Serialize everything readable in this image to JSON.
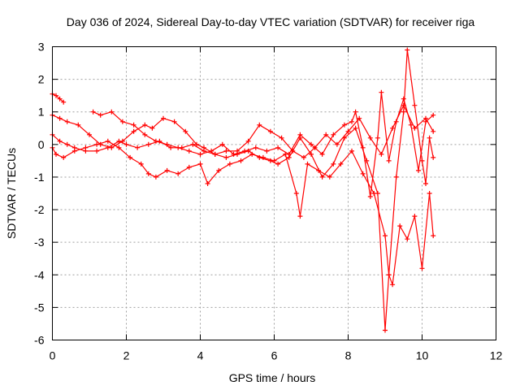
{
  "chart_data": {
    "type": "scatter",
    "title": "Day 036 of 2024, Sidereal Day-to-day VTEC variation (SDTVAR) for receiver riga",
    "xlabel": "GPS time / hours",
    "ylabel": "SDTVAR / TECUs",
    "xlim": [
      0,
      12
    ],
    "ylim": [
      -6,
      3
    ],
    "xticks": [
      0,
      2,
      4,
      6,
      8,
      10,
      12
    ],
    "yticks": [
      -6,
      -5,
      -4,
      -3,
      -2,
      -1,
      0,
      1,
      2,
      3
    ],
    "grid": true,
    "marker": "+",
    "color": "#ff0000",
    "series": [
      {
        "name": "track 1",
        "x": [
          0.0,
          0.2,
          0.4,
          0.7,
          1.0,
          1.3,
          1.6,
          1.9,
          2.2,
          2.5,
          2.7,
          3.0,
          3.3,
          3.6,
          3.9,
          4.1,
          4.4,
          4.7,
          5.0,
          5.3,
          5.6,
          5.9,
          6.2,
          6.5,
          6.8,
          7.1,
          7.4,
          7.7,
          8.0,
          8.3,
          8.6,
          8.9,
          9.2,
          9.5,
          9.8,
          10.1,
          10.3
        ],
        "y": [
          0.9,
          0.8,
          0.7,
          0.6,
          0.3,
          0.0,
          -0.1,
          0.1,
          0.4,
          0.6,
          0.5,
          0.8,
          0.7,
          0.4,
          0.0,
          -0.1,
          -0.3,
          -0.2,
          -0.2,
          0.1,
          0.6,
          0.4,
          0.2,
          -0.2,
          -0.4,
          -0.1,
          0.3,
          0.0,
          0.4,
          0.8,
          0.2,
          -0.3,
          0.5,
          1.2,
          0.5,
          0.8,
          0.4
        ]
      },
      {
        "name": "track 2",
        "x": [
          0.0,
          0.1,
          0.3,
          0.6,
          0.9,
          1.2,
          1.5,
          1.8,
          2.1,
          2.4,
          2.6,
          2.8,
          3.1,
          3.4,
          3.7,
          4.0,
          4.2,
          4.5,
          4.8,
          5.1,
          5.4,
          5.7,
          6.0,
          6.3,
          6.6,
          6.7,
          6.9,
          7.2,
          7.5,
          7.8,
          8.1,
          8.4,
          8.7,
          9.0,
          9.1,
          9.2,
          9.4,
          9.6,
          9.8,
          10.0,
          10.2,
          10.3
        ],
        "y": [
          -0.1,
          -0.3,
          -0.4,
          -0.2,
          -0.1,
          0.0,
          0.1,
          -0.1,
          -0.4,
          -0.6,
          -0.9,
          -1.0,
          -0.8,
          -0.9,
          -0.7,
          -0.6,
          -1.2,
          -0.8,
          -0.6,
          -0.5,
          -0.3,
          -0.4,
          -0.5,
          -0.3,
          -1.5,
          -2.2,
          -0.6,
          -0.8,
          -1.0,
          -0.6,
          -0.2,
          -0.9,
          -1.5,
          -2.8,
          -4.0,
          -4.3,
          -2.5,
          -2.9,
          -2.2,
          -3.8,
          -1.5,
          -2.8
        ]
      },
      {
        "name": "track 3",
        "x": [
          0.0,
          0.2,
          0.4,
          0.6,
          0.9,
          1.2,
          1.5,
          1.8,
          2.0,
          2.3,
          2.6,
          2.9,
          3.2,
          3.5,
          3.8,
          4.1,
          4.4,
          4.7,
          5.0,
          5.3,
          5.6,
          5.9,
          6.1,
          6.4,
          6.7,
          7.0,
          7.3,
          7.6,
          7.9,
          8.2,
          8.5,
          8.8,
          9.0,
          9.1,
          9.3,
          9.5,
          9.6,
          9.8,
          10.0,
          10.1,
          10.2,
          10.3
        ],
        "y": [
          0.3,
          0.1,
          0.0,
          -0.1,
          -0.2,
          -0.2,
          -0.1,
          0.1,
          0.0,
          -0.1,
          0.0,
          0.1,
          -0.1,
          -0.1,
          0.0,
          -0.2,
          -0.3,
          -0.4,
          -0.3,
          -0.2,
          -0.4,
          -0.5,
          -0.6,
          -0.4,
          0.2,
          -0.3,
          -1.0,
          -0.6,
          0.2,
          0.5,
          -0.5,
          -1.5,
          -5.7,
          -4.0,
          -1.0,
          1.0,
          2.9,
          1.2,
          -0.5,
          -1.2,
          0.2,
          -0.4
        ]
      },
      {
        "name": "track 4",
        "x": [
          0.0,
          0.1,
          0.2,
          0.3
        ],
        "y": [
          1.55,
          1.5,
          1.4,
          1.3
        ]
      },
      {
        "name": "track 5",
        "x": [
          1.1,
          1.3,
          1.6,
          1.9,
          2.2,
          2.5,
          2.8,
          3.1,
          3.4,
          3.7,
          4.0,
          4.3,
          4.6,
          4.9,
          5.2,
          5.5,
          5.8,
          6.1,
          6.4,
          6.7,
          7.0,
          7.3,
          7.6,
          7.9,
          8.1,
          8.2,
          8.4,
          8.6,
          8.8,
          8.9,
          9.1,
          9.3,
          9.5,
          9.7,
          9.9,
          10.1,
          10.3
        ],
        "y": [
          1.0,
          0.9,
          1.0,
          0.7,
          0.6,
          0.3,
          0.1,
          0.0,
          -0.1,
          -0.2,
          -0.3,
          -0.2,
          0.0,
          -0.3,
          -0.2,
          -0.1,
          -0.2,
          -0.1,
          -0.3,
          0.3,
          0.0,
          -0.3,
          0.3,
          0.6,
          0.7,
          1.0,
          -0.1,
          -1.6,
          0.2,
          1.6,
          -0.5,
          0.7,
          1.4,
          0.6,
          -0.8,
          0.7,
          0.9
        ]
      }
    ]
  }
}
